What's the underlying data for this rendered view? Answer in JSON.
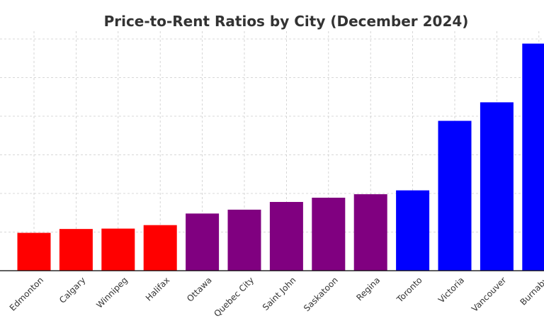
{
  "chart_data": {
    "type": "bar",
    "title": "Price-to-Rent Ratios by City (December 2024)",
    "xlabel": "",
    "ylabel": "",
    "categories": [
      "Edmonton",
      "Calgary",
      "Winnipeg",
      "Halifax",
      "Ottawa",
      "Quebec City",
      "Saint John",
      "Saskatoon",
      "Regina",
      "Toronto",
      "Victoria",
      "Vancouver",
      "Burnaby"
    ],
    "values": [
      9.8,
      10.8,
      10.9,
      11.8,
      14.8,
      15.8,
      17.8,
      18.9,
      19.8,
      20.8,
      38.8,
      43.6,
      58.8
    ],
    "bar_colors": [
      "#ff0000",
      "#ff0000",
      "#ff0000",
      "#ff0000",
      "#800080",
      "#800080",
      "#800080",
      "#800080",
      "#800080",
      "#0000ff",
      "#0000ff",
      "#0000ff",
      "#0000ff"
    ],
    "ylim": [
      0,
      60
    ],
    "y_gridlines": [
      10,
      20,
      30,
      40,
      50,
      60
    ],
    "grid": true,
    "grid_style": "dashed",
    "legend": false
  }
}
